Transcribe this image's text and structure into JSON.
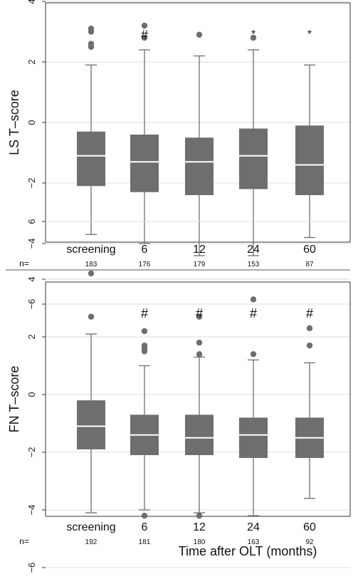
{
  "chart_data": [
    {
      "type": "box",
      "ylabel": "LS T–score",
      "yticks": [
        "6",
        "4",
        "2",
        "0",
        "−2",
        "−4",
        "−6"
      ],
      "ylim": [
        -8,
        8
      ],
      "categories": [
        "screening",
        "6",
        "12",
        "24",
        "60"
      ],
      "n_prefix": "n=",
      "n": [
        "183",
        "176",
        "179",
        "153",
        "87"
      ],
      "grid": true,
      "box_color": "#6e6e6e",
      "boxes": [
        {
          "whisker_low": -3.7,
          "q1": -2.1,
          "median": -1.1,
          "q3": -0.3,
          "whisker_high": 1.9,
          "outliers": [
            2.5,
            2.6,
            3.0,
            3.1,
            4.6
          ],
          "annotation": ""
        },
        {
          "whisker_low": -4.0,
          "q1": -2.3,
          "median": -1.3,
          "q3": -0.4,
          "whisker_high": 2.4,
          "outliers": [
            2.8,
            3.2
          ],
          "annotation": "#"
        },
        {
          "whisker_low": -4.4,
          "q1": -2.4,
          "median": -1.3,
          "q3": -0.5,
          "whisker_high": 2.2,
          "outliers": [
            2.9
          ],
          "annotation": ""
        },
        {
          "whisker_low": -4.4,
          "q1": -2.2,
          "median": -1.1,
          "q3": -0.2,
          "whisker_high": 2.4,
          "outliers": [
            2.8
          ],
          "annotation": "*"
        },
        {
          "whisker_low": -3.8,
          "q1": -2.4,
          "median": -1.4,
          "q3": -0.1,
          "whisker_high": 1.9,
          "outliers": [],
          "annotation": "*"
        }
      ]
    },
    {
      "type": "box",
      "ylabel": "FN T–score",
      "yticks": [
        "6",
        "4",
        "2",
        "0",
        "−2",
        "−4",
        "−6"
      ],
      "ylim": [
        -8,
        7.8
      ],
      "categories": [
        "screening",
        "6",
        "12",
        "24",
        "60"
      ],
      "n_prefix": "n=",
      "n": [
        "192",
        "181",
        "180",
        "163",
        "92"
      ],
      "grid": true,
      "box_color": "#6e6e6e",
      "boxes": [
        {
          "whisker_low": -4.1,
          "q1": -1.9,
          "median": -1.1,
          "q3": -0.2,
          "whisker_high": 2.1,
          "outliers": [
            2.7,
            4.2,
            -6.6
          ],
          "annotation": ""
        },
        {
          "whisker_low": -4.0,
          "q1": -2.1,
          "median": -1.4,
          "q3": -0.7,
          "whisker_high": 1.0,
          "outliers": [
            1.5,
            1.6,
            1.7,
            2.2,
            -4.2,
            -6.5
          ],
          "annotation": "#"
        },
        {
          "whisker_low": -4.1,
          "q1": -2.1,
          "median": -1.5,
          "q3": -0.7,
          "whisker_high": 1.3,
          "outliers": [
            1.4,
            1.8,
            2.7,
            -4.2,
            -6.5
          ],
          "annotation": "#"
        },
        {
          "whisker_low": -4.2,
          "q1": -2.2,
          "median": -1.4,
          "q3": -0.8,
          "whisker_high": 1.2,
          "outliers": [
            1.4,
            3.3,
            -6.5
          ],
          "annotation": "#"
        },
        {
          "whisker_low": -3.6,
          "q1": -2.2,
          "median": -1.5,
          "q3": -0.8,
          "whisker_high": 1.1,
          "outliers": [
            1.7,
            2.3,
            -6.5
          ],
          "annotation": "#"
        }
      ]
    }
  ],
  "xlabel": "Time after OLT (months)"
}
